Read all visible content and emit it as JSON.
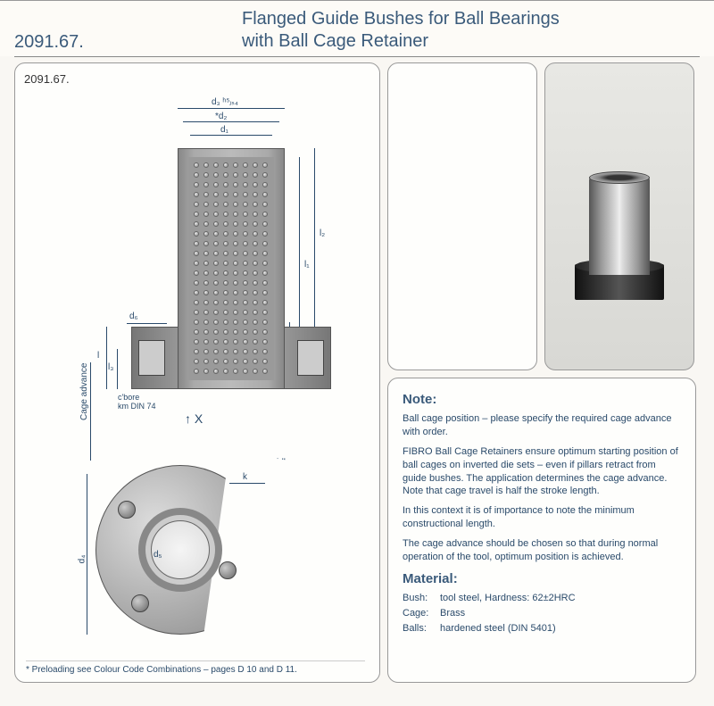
{
  "header": {
    "part_no": "2091.67.",
    "title_line1": "Flanged Guide Bushes for Ball Bearings",
    "title_line2": "with Ball Cage Retainer"
  },
  "left_panel": {
    "label": "2091.67.",
    "dims": {
      "d1": "d₁",
      "d2": "*d₂",
      "d3": "d₃ ʰ⁵ⱼₛ₄",
      "d4": "d₄",
      "d5": "d₅",
      "d6": "d₆",
      "l": "l",
      "l1": "l₁",
      "l2": "l₂",
      "l3": "l₃",
      "six14": "6 l 4",
      "k": "k"
    },
    "cage_advance": "Cage advance",
    "cbore": "c'bore\nkm DIN 74",
    "x_arrow": "↑ X",
    "x_detail": "„ X \"",
    "footnote": "* Preloading see Colour Code Combinations – pages D 10 and D 11."
  },
  "note": {
    "heading": "Note:",
    "p1": "Ball cage position – please specify the required cage advance with order.",
    "p2": "FIBRO Ball Cage Retainers ensure optimum starting position of ball cages on inverted die sets – even if pillars retract from guide bushes. The application determines the cage advance. Note that cage travel is half the stroke length.",
    "p3": "In this context it is of importance to note the minimum constructional length.",
    "p4": "The cage advance should be chosen so that during normal operation of the tool, optimum position is achieved.",
    "mat_heading": "Material:",
    "mat_bush_label": "Bush:",
    "mat_bush_val": "tool steel, Hardness: 62±2HRC",
    "mat_cage_label": "Cage:",
    "mat_cage_val": "Brass",
    "mat_balls_label": "Balls:",
    "mat_balls_val": "hardened steel (DIN 5401)"
  },
  "colors": {
    "heading": "#3a5a7a",
    "text": "#2a4a6a",
    "border": "#999",
    "bg": "#fdfbf7"
  }
}
